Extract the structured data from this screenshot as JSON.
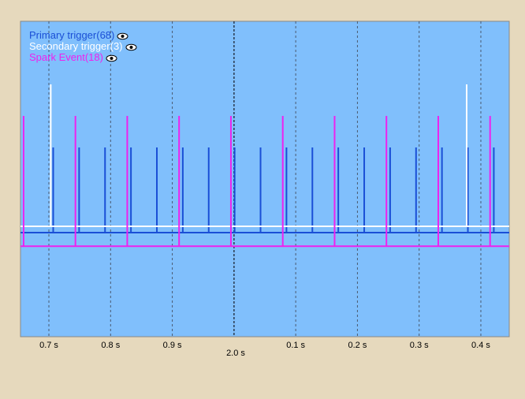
{
  "chart_data": {
    "type": "line",
    "title": "",
    "xlabel": "2.0 s",
    "ylabel": "",
    "grid": true,
    "legend_placement": "top-left",
    "x_ticks": [
      {
        "t": -0.3,
        "label": "0.7 s"
      },
      {
        "t": -0.2,
        "label": "0.8 s"
      },
      {
        "t": -0.1,
        "label": "0.9 s"
      },
      {
        "t": 0.1,
        "label": "0.1 s"
      },
      {
        "t": 0.2,
        "label": "0.2 s"
      },
      {
        "t": 0.3,
        "label": "0.3 s"
      },
      {
        "t": 0.4,
        "label": "0.4 s"
      }
    ],
    "x_center": 0.0,
    "xlim": [
      -0.346,
      0.446
    ],
    "series": [
      {
        "name": "Primary trigger(68)",
        "color": "#1a4fd6",
        "baseline_level": 0.33,
        "pulse_level": 0.6,
        "x": [
          -0.293,
          -0.251,
          -0.209,
          -0.167,
          -0.125,
          -0.083,
          -0.041,
          0.001,
          0.043,
          0.085,
          0.127,
          0.169,
          0.211,
          0.253,
          0.295,
          0.337,
          0.379,
          0.421
        ]
      },
      {
        "name": "Secondary trigger(3)",
        "color": "#ffffff",
        "baseline_level": 0.35,
        "pulse_level": 0.8,
        "x": [
          -0.297,
          0.377
        ]
      },
      {
        "name": "Spark Event(18)",
        "color": "#ee22ee",
        "baseline_level": 0.287,
        "pulse_level": 0.7,
        "x": [
          -0.341,
          -0.257,
          -0.173,
          -0.089,
          -0.005,
          0.079,
          0.163,
          0.247,
          0.331,
          0.415
        ]
      }
    ]
  },
  "legend": [
    {
      "label": "Primary trigger(68)",
      "color": "#1a4fd6",
      "icon": "eye-icon"
    },
    {
      "label": "Secondary trigger(3)",
      "color": "#ffffff",
      "icon": "eye-icon"
    },
    {
      "label": "Spark Event(18)",
      "color": "#ee22ee",
      "icon": "eye-icon"
    }
  ]
}
